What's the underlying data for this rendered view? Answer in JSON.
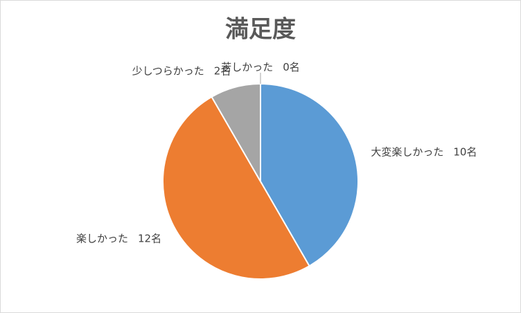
{
  "chart_data": {
    "type": "pie",
    "title": "満足度",
    "categories": [
      "大変楽しかった",
      "楽しかった",
      "少しつらかった",
      "苦しかった"
    ],
    "values": [
      10,
      12,
      2,
      0
    ],
    "value_labels": [
      "10名",
      "12名",
      "2名",
      "0名"
    ],
    "colors": [
      "#5b9bd5",
      "#ed7d31",
      "#a5a5a5",
      "#ffc000"
    ]
  }
}
